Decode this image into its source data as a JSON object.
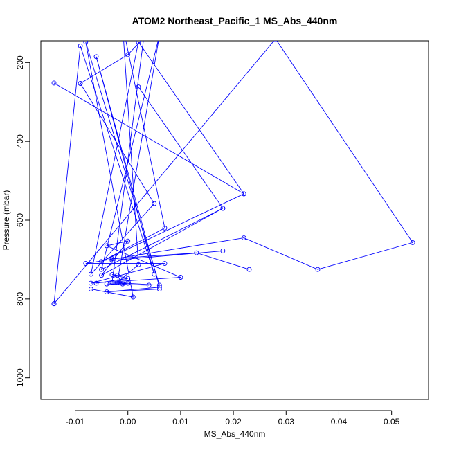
{
  "chart_data": {
    "type": "line",
    "title": "ATOM2 Northeast_Pacific_1 MS_Abs_440nm",
    "xlabel": "MS_Abs_440nm",
    "ylabel": "Pressure (mbar)",
    "xlim": [
      -0.0165,
      0.057
    ],
    "ylim": [
      1055,
      145
    ],
    "y_reversed": true,
    "x_ticks": [
      -0.01,
      0.0,
      0.01,
      0.02,
      0.03,
      0.04,
      0.05
    ],
    "x_tick_labels": [
      "-0.01",
      "0.00",
      "0.01",
      "0.02",
      "0.03",
      "0.04",
      "0.05"
    ],
    "y_ticks": [
      200,
      400,
      600,
      800,
      1000
    ],
    "y_tick_labels": [
      "200",
      "400",
      "600",
      "800",
      "1000"
    ],
    "grid": false,
    "series": [
      {
        "color": "#0000ff",
        "marker": "open-circle",
        "points": [
          [
            -0.014,
            812
          ],
          [
            -0.009,
            158
          ],
          [
            0.005,
            737
          ],
          [
            -0.006,
            185
          ],
          [
            0.006,
            770
          ],
          [
            -0.004,
            782
          ],
          [
            0.006,
            775
          ],
          [
            -0.007,
            775
          ],
          [
            0.001,
            795
          ],
          [
            -0.008,
            148
          ],
          [
            0.006,
            765
          ],
          [
            -0.003,
            758
          ],
          [
            0.003,
            138
          ],
          [
            0.0,
            180
          ],
          [
            -0.009,
            253
          ],
          [
            0.005,
            558
          ],
          [
            -0.007,
            737
          ],
          [
            0.002,
            148
          ],
          [
            0.022,
            533
          ],
          [
            -0.005,
            705
          ],
          [
            0.007,
            620
          ],
          [
            -0.001,
            105
          ],
          [
            0.002,
            713
          ],
          [
            -0.002,
            758
          ],
          [
            0.006,
            130
          ],
          [
            -0.005,
            725
          ],
          [
            0.018,
            570
          ],
          [
            -0.005,
            740
          ],
          [
            0.0,
            653
          ],
          [
            -0.004,
            665
          ],
          [
            0.01,
            745
          ],
          [
            -0.007,
            760
          ],
          [
            0.007,
            710
          ],
          [
            -0.008,
            710
          ],
          [
            0.022,
            645
          ],
          [
            0.036,
            725
          ],
          [
            0.054,
            657
          ],
          [
            0.028,
            140
          ],
          [
            -0.014,
            812
          ]
        ]
      },
      {
        "color": "#0000ff",
        "marker": "open-circle",
        "points": [
          [
            -0.014,
            252
          ],
          [
            0.022,
            533
          ]
        ]
      },
      {
        "color": "#0000ff",
        "marker": "open-circle",
        "points": [
          [
            0.002,
            262
          ],
          [
            0.018,
            570
          ]
        ]
      },
      {
        "color": "#0000ff",
        "marker": "open-circle",
        "points": [
          [
            -0.003,
            698
          ],
          [
            0.013,
            683
          ],
          [
            0.023,
            725
          ]
        ]
      },
      {
        "color": "#0000ff",
        "marker": "open-circle",
        "points": [
          [
            -0.003,
            702
          ],
          [
            0.018,
            678
          ]
        ]
      },
      {
        "color": "#0000ff",
        "marker": "open-circle",
        "points": [
          [
            -0.006,
            760
          ],
          [
            0.0,
            748
          ],
          [
            -0.003,
            738
          ],
          [
            -0.002,
            740
          ],
          [
            -0.001,
            762
          ],
          [
            0.0,
            760
          ],
          [
            -0.004,
            762
          ],
          [
            0.004,
            765
          ]
        ]
      }
    ]
  }
}
